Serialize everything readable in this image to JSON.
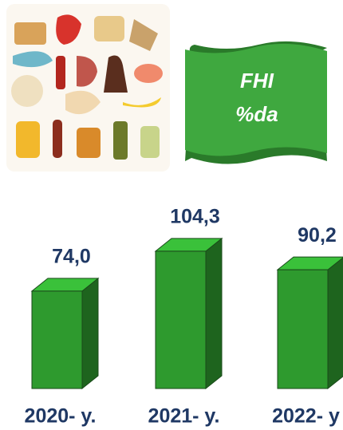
{
  "chart_data": {
    "type": "bar3d",
    "title": "FHI",
    "subtitle": "%da",
    "categories": [
      "2020- y.",
      "2021- y.",
      "2022- y"
    ],
    "values": [
      74.0,
      104.3,
      90.2
    ],
    "value_labels": [
      "74,0",
      "104,3",
      "90,2"
    ],
    "color": "#2e9a2e"
  }
}
